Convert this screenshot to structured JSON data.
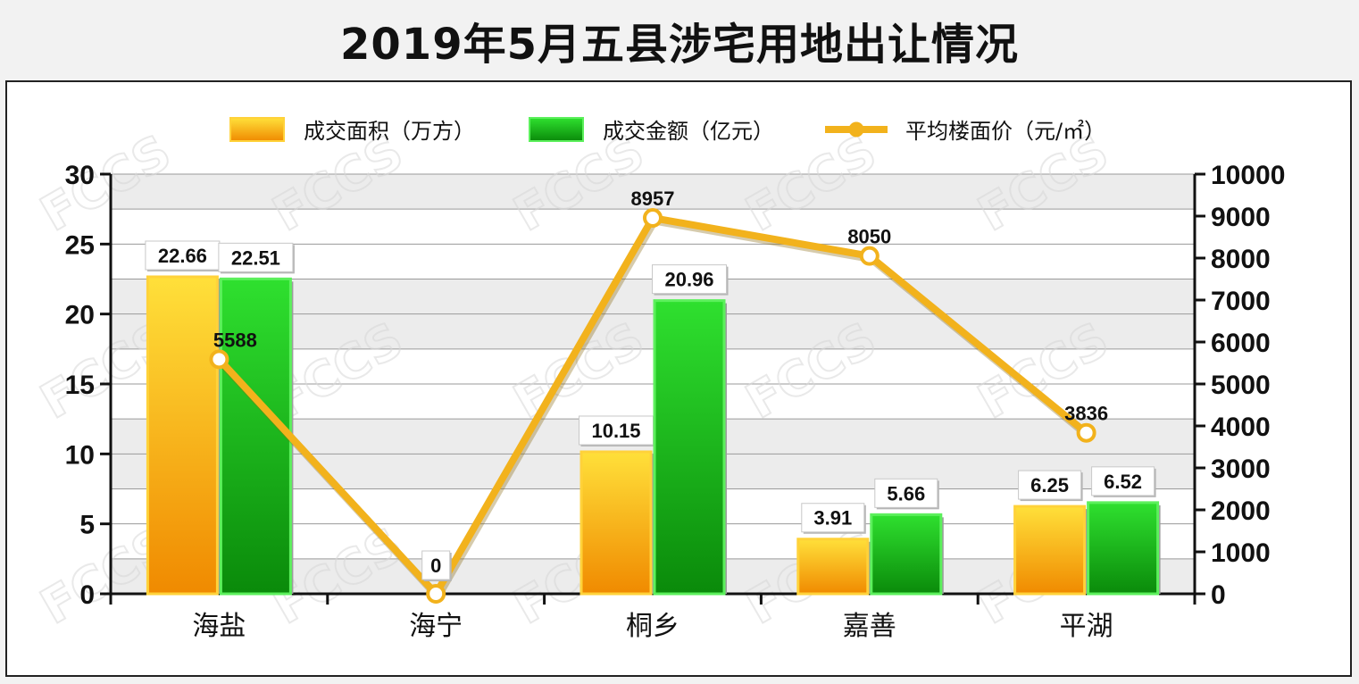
{
  "chart_data": {
    "type": "bar",
    "title": "2019年5月五县涉宅用地出让情况",
    "categories": [
      "海盐",
      "海宁",
      "桐乡",
      "嘉善",
      "平湖"
    ],
    "series": [
      {
        "name": "成交面积（万方）",
        "type": "bar",
        "axis": "left",
        "values": [
          22.66,
          0,
          10.15,
          3.91,
          6.25
        ],
        "labels": [
          "22.66",
          "",
          "10.15",
          "3.91",
          "6.25"
        ]
      },
      {
        "name": "成交金额（亿元）",
        "type": "bar",
        "axis": "left",
        "values": [
          22.51,
          0,
          20.96,
          5.66,
          6.52
        ],
        "labels": [
          "22.51",
          "",
          "20.96",
          "5.66",
          "6.52"
        ]
      },
      {
        "name": "平均楼面价（元/㎡）",
        "type": "line",
        "axis": "right",
        "values": [
          5588,
          0,
          8957,
          8050,
          3836
        ],
        "labels": [
          "5588",
          "0",
          "8957",
          "8050",
          "3836"
        ]
      }
    ],
    "y_left": {
      "min": 0,
      "max": 30,
      "ticks": [
        "0",
        "5",
        "10",
        "15",
        "20",
        "25",
        "30"
      ]
    },
    "y_right": {
      "min": 0,
      "max": 10000,
      "ticks": [
        "0",
        "1000",
        "2000",
        "3000",
        "4000",
        "5000",
        "6000",
        "7000",
        "8000",
        "9000",
        "10000"
      ]
    },
    "grid": true,
    "legend_position": "top"
  },
  "colors": {
    "area_top": "#ffe03a",
    "area_bottom": "#f08a00",
    "area_border": "#ffd23a",
    "amount_top": "#2fe02f",
    "amount_bottom": "#0a8a0a",
    "amount_border": "#5cf05c",
    "line": "#f2b21c",
    "marker": "#ffffff"
  },
  "watermark": "FCCS"
}
